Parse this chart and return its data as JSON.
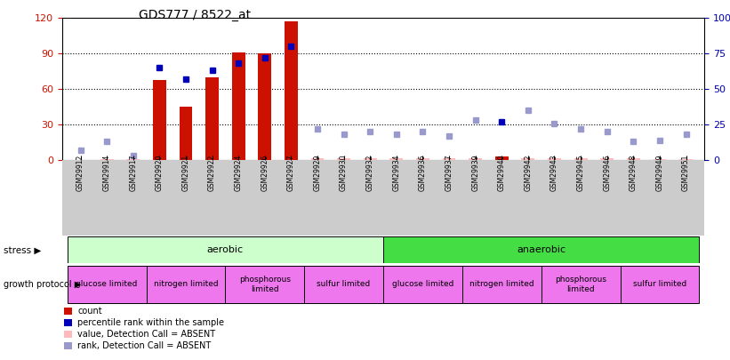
{
  "title": "GDS777 / 8522_at",
  "samples": [
    "GSM29912",
    "GSM29914",
    "GSM29917",
    "GSM29920",
    "GSM29921",
    "GSM29922",
    "GSM29924",
    "GSM29926",
    "GSM29927",
    "GSM29929",
    "GSM29930",
    "GSM29932",
    "GSM29934",
    "GSM29936",
    "GSM29937",
    "GSM29939",
    "GSM29940",
    "GSM29942",
    "GSM29943",
    "GSM29945",
    "GSM29946",
    "GSM29948",
    "GSM29949",
    "GSM29951"
  ],
  "count_values_present": [
    0,
    0,
    0,
    68,
    45,
    70,
    91,
    90,
    117,
    0,
    0,
    0,
    0,
    0,
    0,
    0,
    3,
    0,
    0,
    0,
    0,
    0,
    0,
    0
  ],
  "count_values_absent": [
    0,
    1,
    1,
    0,
    0,
    0,
    0,
    0,
    0,
    2,
    2,
    2,
    2,
    2,
    2,
    2,
    0,
    2,
    2,
    2,
    2,
    2,
    1,
    1
  ],
  "rank_values": [
    7,
    13,
    3,
    65,
    57,
    63,
    68,
    72,
    80,
    22,
    18,
    20,
    18,
    20,
    17,
    28,
    27,
    35,
    26,
    22,
    20,
    13,
    14,
    18
  ],
  "rank_absent": [
    true,
    true,
    true,
    false,
    false,
    false,
    false,
    false,
    false,
    true,
    true,
    true,
    true,
    true,
    true,
    true,
    false,
    true,
    true,
    true,
    true,
    true,
    true,
    true
  ],
  "stress_groups": [
    {
      "label": "aerobic",
      "start": 0,
      "end": 11,
      "color": "#ccffcc"
    },
    {
      "label": "anaerobic",
      "start": 12,
      "end": 23,
      "color": "#44dd44"
    }
  ],
  "growth_groups": [
    {
      "label": "glucose limited",
      "start": 0,
      "end": 2,
      "color": "#ee77ee"
    },
    {
      "label": "nitrogen limited",
      "start": 3,
      "end": 5,
      "color": "#ee77ee"
    },
    {
      "label": "phosphorous\nlimited",
      "start": 6,
      "end": 8,
      "color": "#ee77ee"
    },
    {
      "label": "sulfur limited",
      "start": 9,
      "end": 11,
      "color": "#ee77ee"
    },
    {
      "label": "glucose limited",
      "start": 12,
      "end": 14,
      "color": "#ee77ee"
    },
    {
      "label": "nitrogen limited",
      "start": 15,
      "end": 17,
      "color": "#ee77ee"
    },
    {
      "label": "phosphorous\nlimited",
      "start": 18,
      "end": 20,
      "color": "#ee77ee"
    },
    {
      "label": "sulfur limited",
      "start": 21,
      "end": 23,
      "color": "#ee77ee"
    }
  ],
  "ylim_left": [
    0,
    120
  ],
  "ylim_right": [
    0,
    100
  ],
  "yticks_left": [
    0,
    30,
    60,
    90,
    120
  ],
  "yticks_right": [
    0,
    25,
    50,
    75,
    100
  ],
  "yticklabels_right": [
    "0",
    "25",
    "50",
    "75",
    "100%"
  ],
  "bar_color_present": "#cc1100",
  "bar_color_absent": "#ffbbbb",
  "rank_color_present": "#0000bb",
  "rank_color_absent": "#9999cc",
  "left_tick_color": "#cc1100",
  "right_tick_color": "#0000aa",
  "xtick_bg_color": "#cccccc"
}
